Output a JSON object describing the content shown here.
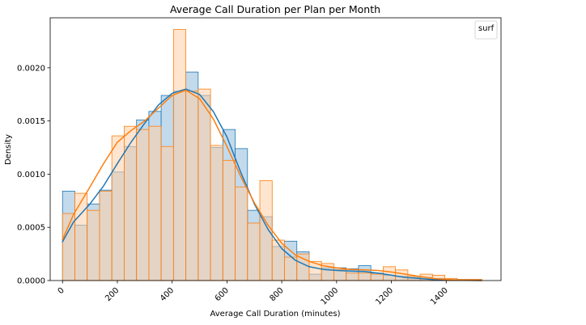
{
  "chart_data": {
    "type": "histogram",
    "title": "Average Call Duration per Plan per Month",
    "xlabel": "Average Call Duration (minutes)",
    "ylabel": "Density",
    "xlim": [
      -45,
      1600
    ],
    "ylim": [
      0,
      0.00247
    ],
    "grid": false,
    "legend": {
      "title": "surf",
      "placement": "top-right"
    },
    "x_ticks": [
      0,
      200,
      400,
      600,
      800,
      1000,
      1200,
      1400
    ],
    "y_ticks": [
      {
        "value": 0,
        "label": "0.0000"
      },
      {
        "value": 0.0005,
        "label": "0.0005"
      },
      {
        "value": 0.001,
        "label": "0.0010"
      },
      {
        "value": 0.0015,
        "label": "0.0015"
      },
      {
        "value": 0.002,
        "label": "0.0020"
      }
    ],
    "bin_edges": [
      0,
      45,
      90,
      135,
      180,
      225,
      270,
      315,
      360,
      405,
      450,
      495,
      540,
      585,
      630,
      675,
      720,
      765,
      810,
      855,
      900,
      945,
      990,
      1035,
      1080,
      1125,
      1170,
      1215,
      1260,
      1305,
      1350,
      1395,
      1440,
      1485,
      1530
    ],
    "series": [
      {
        "color": "#1f77b4",
        "fill": "#aecde6",
        "density": [
          0.00084,
          0.00052,
          0.00072,
          0.00085,
          0.00102,
          0.00126,
          0.00151,
          0.00159,
          0.00174,
          0.00178,
          0.00196,
          0.00174,
          0.00125,
          0.00142,
          0.00124,
          0.00066,
          0.0006,
          0.00032,
          0.00037,
          0.00027,
          6e-05,
          0.00012,
          0.00012,
          0.00011,
          0.00014,
          7e-05,
          5e-05,
          4e-05,
          3e-05,
          3e-05,
          2e-05,
          1e-05,
          1e-05,
          1e-05
        ],
        "kde": [
          [
            -1,
            0.00036
          ],
          [
            40,
            0.00055
          ],
          [
            100,
            0.00072
          ],
          [
            150,
            0.00089
          ],
          [
            200,
            0.0011
          ],
          [
            250,
            0.0013
          ],
          [
            300,
            0.00148
          ],
          [
            350,
            0.00165
          ],
          [
            400,
            0.00176
          ],
          [
            450,
            0.0018
          ],
          [
            500,
            0.00175
          ],
          [
            550,
            0.00159
          ],
          [
            600,
            0.00135
          ],
          [
            650,
            0.00102
          ],
          [
            700,
            0.00072
          ],
          [
            750,
            0.00048
          ],
          [
            800,
            0.0003
          ],
          [
            850,
            0.00019
          ],
          [
            900,
            0.00013
          ],
          [
            950,
            0.000105
          ],
          [
            1000,
            9.5e-05
          ],
          [
            1050,
            9e-05
          ],
          [
            1100,
            8.5e-05
          ],
          [
            1150,
            7e-05
          ],
          [
            1200,
            5e-05
          ],
          [
            1250,
            3e-05
          ],
          [
            1300,
            2e-05
          ],
          [
            1350,
            1e-05
          ],
          [
            1400,
            5e-06
          ],
          [
            1450,
            2e-06
          ],
          [
            1530,
            0.0
          ]
        ]
      },
      {
        "color": "#ff7f0e",
        "fill": "#ffd0a8",
        "density": [
          0.00063,
          0.00082,
          0.00066,
          0.00084,
          0.00136,
          0.00145,
          0.00142,
          0.00145,
          0.00126,
          0.00236,
          0.00178,
          0.0018,
          0.00127,
          0.00113,
          0.00088,
          0.00054,
          0.00094,
          0.00038,
          0.00022,
          0.00025,
          0.00018,
          0.00016,
          0.0001,
          7e-05,
          7e-05,
          6e-05,
          0.00013,
          0.0001,
          4e-05,
          6e-05,
          5e-05,
          2e-05,
          1e-05,
          1e-05
        ],
        "kde": [
          [
            -1,
            0.00038
          ],
          [
            40,
            0.00062
          ],
          [
            100,
            0.00088
          ],
          [
            150,
            0.0011
          ],
          [
            200,
            0.0013
          ],
          [
            250,
            0.00141
          ],
          [
            300,
            0.0015
          ],
          [
            350,
            0.00162
          ],
          [
            400,
            0.00174
          ],
          [
            450,
            0.00179
          ],
          [
            500,
            0.00171
          ],
          [
            550,
            0.00152
          ],
          [
            600,
            0.00126
          ],
          [
            650,
            0.00098
          ],
          [
            700,
            0.00073
          ],
          [
            750,
            0.00052
          ],
          [
            800,
            0.00035
          ],
          [
            850,
            0.00024
          ],
          [
            900,
            0.00018
          ],
          [
            950,
            0.00014
          ],
          [
            1000,
            0.00012
          ],
          [
            1050,
            0.000105
          ],
          [
            1100,
            0.0001
          ],
          [
            1150,
            9.5e-05
          ],
          [
            1200,
            8e-05
          ],
          [
            1250,
            6e-05
          ],
          [
            1300,
            4e-05
          ],
          [
            1350,
            2e-05
          ],
          [
            1400,
            1e-05
          ],
          [
            1450,
            4e-06
          ],
          [
            1530,
            0.0
          ]
        ]
      }
    ]
  }
}
